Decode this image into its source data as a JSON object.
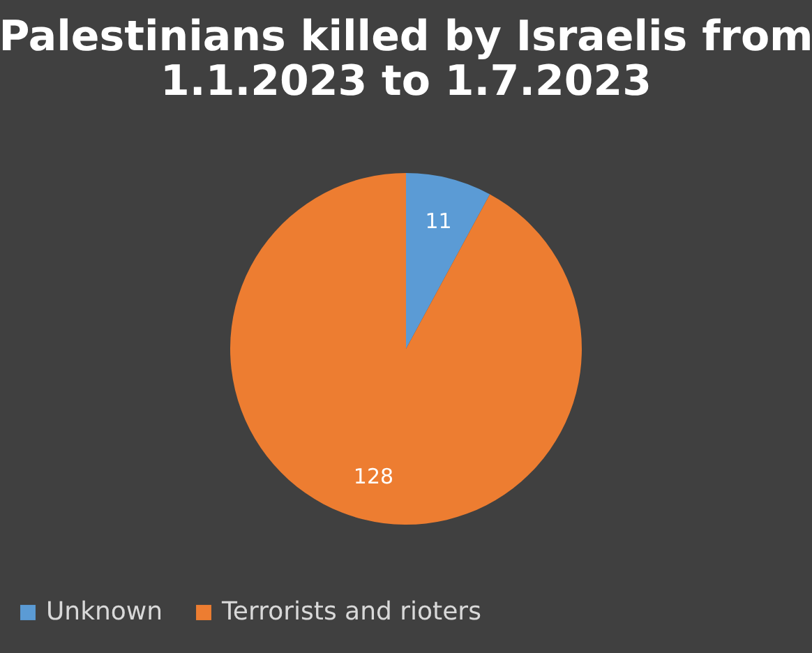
{
  "chart_data": {
    "type": "pie",
    "title": "Palestinians killed by Israelis from\n1.1.2023 to 1.7.2023",
    "categories": [
      "Unknown",
      "Terrorists and rioters"
    ],
    "values": [
      11,
      128
    ],
    "colors": [
      "#5b9bd5",
      "#ed7d31"
    ],
    "data_labels": true,
    "legend": "bottom"
  }
}
